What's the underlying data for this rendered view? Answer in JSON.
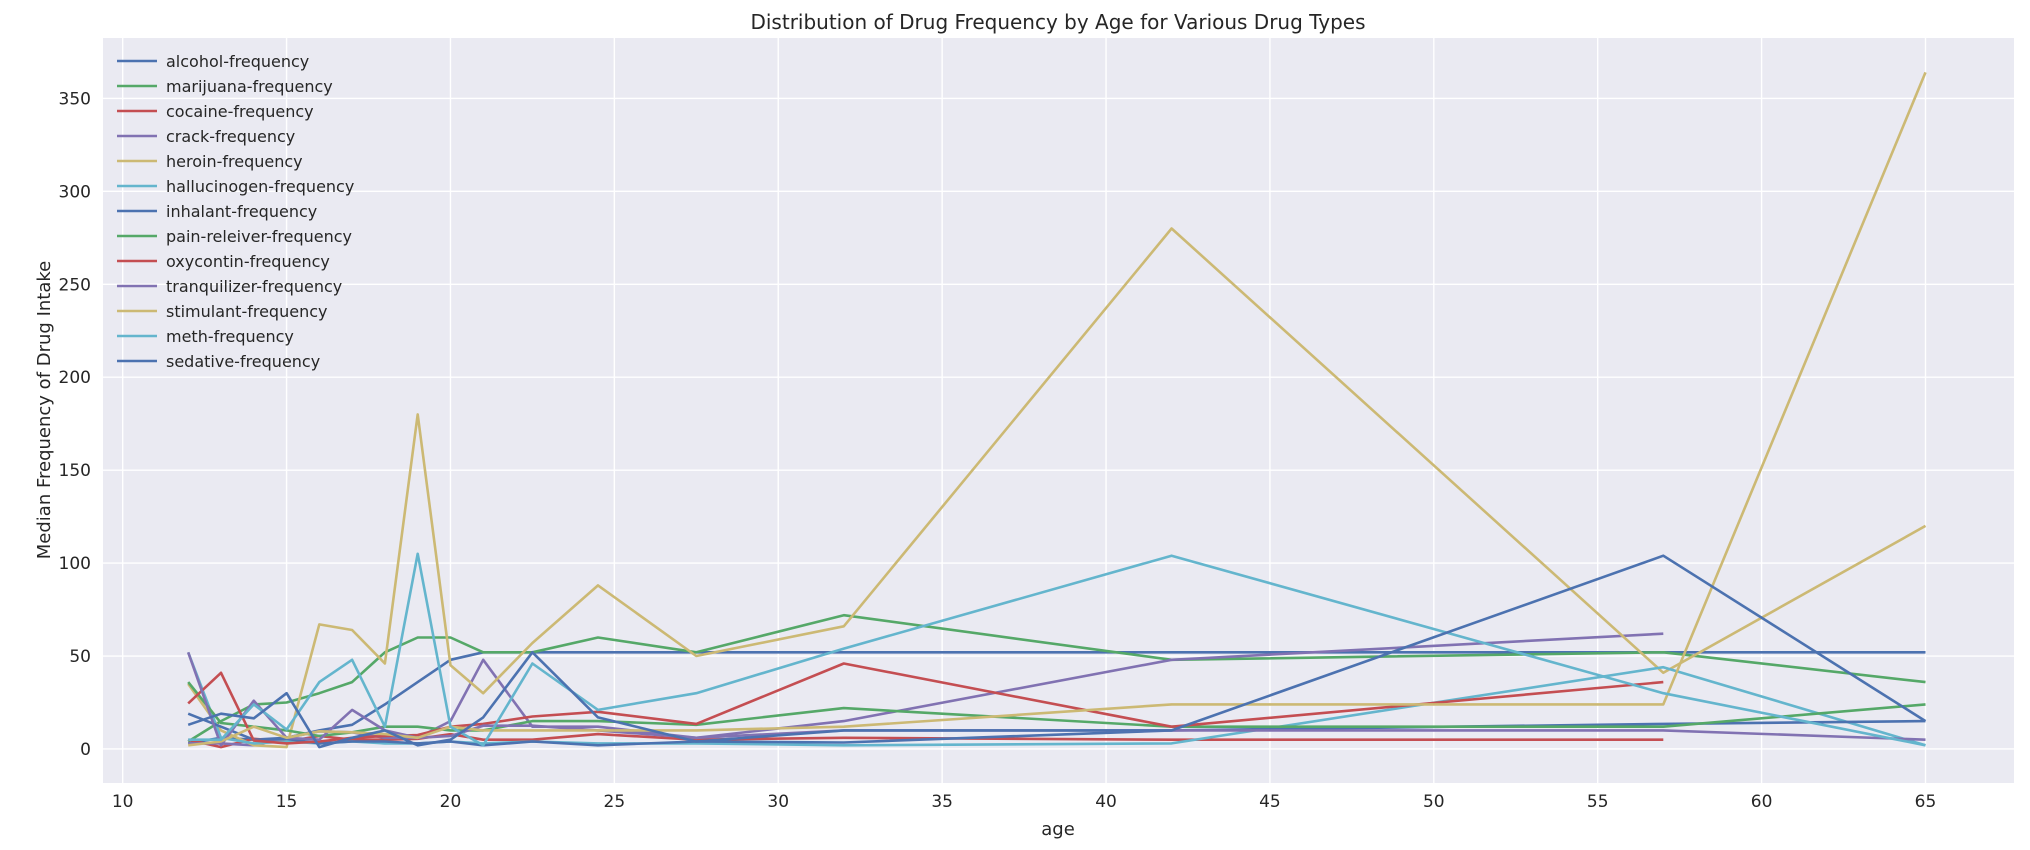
{
  "chart_data": {
    "type": "line",
    "title": "Distribution of Drug Frequency by Age for Various Drug Types",
    "xlabel": "age",
    "ylabel": "Median Frequency of Drug Intake",
    "xlim": [
      9.4,
      67.7
    ],
    "ylim": [
      -18.3,
      382.5
    ],
    "xticks": [
      10,
      15,
      20,
      25,
      30,
      35,
      40,
      45,
      50,
      55,
      60,
      65
    ],
    "yticks": [
      0,
      50,
      100,
      150,
      200,
      250,
      300,
      350
    ],
    "grid": true,
    "legend_position": "top-left",
    "series": [
      {
        "name": "alcohol-frequency",
        "color": "#4c72b0",
        "x": [
          12,
          13,
          14,
          15,
          16,
          17,
          18,
          19,
          20,
          21,
          22.5,
          24.5,
          27.5,
          32,
          42,
          57,
          65
        ],
        "y": [
          3,
          6,
          5,
          6,
          10,
          13,
          24,
          36,
          48,
          52,
          52,
          52,
          52,
          52,
          52,
          52,
          52
        ]
      },
      {
        "name": "marijuana-frequency",
        "color": "#55a868",
        "x": [
          12,
          13,
          14,
          15,
          16,
          17,
          18,
          19,
          20,
          21,
          22.5,
          24.5,
          27.5,
          32,
          42,
          57,
          65
        ],
        "y": [
          4,
          15,
          24,
          25,
          30,
          36,
          52,
          60,
          60,
          52,
          52,
          60,
          52,
          72,
          48,
          52,
          36
        ]
      },
      {
        "name": "cocaine-frequency",
        "color": "#c44e52",
        "x": [
          12,
          13,
          14,
          15,
          16,
          17,
          18,
          19,
          20,
          21,
          22.5,
          24.5,
          27.5,
          32,
          42,
          57
        ],
        "y": [
          5,
          1,
          5.5,
          4,
          7,
          5,
          5,
          5.5,
          8,
          5,
          5,
          8,
          5,
          6,
          5,
          5
        ]
      },
      {
        "name": "crack-frequency",
        "color": "#8172b2",
        "x": [
          12,
          13,
          14,
          15,
          16,
          17,
          18,
          19,
          20,
          21,
          22.5,
          24.5,
          27.5,
          32,
          42,
          57
        ],
        "y": [
          3,
          3,
          2,
          6,
          9.5,
          9,
          6,
          6,
          15,
          48,
          12,
          12,
          6,
          15,
          48,
          62
        ]
      },
      {
        "name": "heroin-frequency",
        "color": "#ccb974",
        "x": [
          12,
          13,
          14,
          15,
          16,
          17,
          18,
          19,
          20,
          21,
          22.5,
          24.5,
          27.5,
          32,
          42,
          57,
          65
        ],
        "y": [
          35,
          10,
          2,
          1,
          67,
          64,
          46,
          180,
          45,
          30,
          57,
          88,
          50,
          66,
          280,
          41,
          120
        ]
      },
      {
        "name": "hallucinogen-frequency",
        "color": "#64b5cd",
        "x": [
          12,
          13,
          14,
          15,
          16,
          17,
          18,
          19,
          20,
          21,
          22.5,
          24.5,
          27.5,
          32,
          42,
          57,
          65
        ],
        "y": [
          52,
          6,
          3,
          4,
          3,
          4,
          3,
          3,
          4,
          3,
          4,
          3,
          3,
          2,
          3,
          44,
          2
        ]
      },
      {
        "name": "inhalant-frequency",
        "color": "#4c72b0",
        "x": [
          12,
          13,
          14,
          15,
          16,
          17,
          18,
          19,
          20,
          21,
          22.5,
          24.5,
          27.5,
          32,
          42,
          57,
          65
        ],
        "y": [
          19,
          12,
          5,
          5.5,
          3,
          4,
          4,
          3,
          4,
          2,
          4,
          2,
          4,
          3.5,
          10,
          13.5,
          15
        ]
      },
      {
        "name": "pain-releiver-frequency",
        "color": "#55a868",
        "x": [
          12,
          13,
          14,
          15,
          16,
          17,
          18,
          19,
          20,
          21,
          22.5,
          24.5,
          27.5,
          32,
          42,
          57,
          65
        ],
        "y": [
          36,
          14,
          12,
          10,
          7,
          9,
          12,
          12,
          10,
          10,
          15,
          15,
          13,
          22,
          12,
          12,
          24
        ]
      },
      {
        "name": "oxycontin-frequency",
        "color": "#c44e52",
        "x": [
          12,
          13,
          14,
          15,
          16,
          17,
          18,
          19,
          20,
          21,
          22.5,
          24.5,
          27.5,
          32,
          42,
          57
        ],
        "y": [
          24.5,
          41,
          4.5,
          3,
          4,
          6,
          7,
          7.5,
          12,
          13.5,
          17.5,
          20,
          13.5,
          46,
          12,
          36
        ]
      },
      {
        "name": "tranquilizer-frequency",
        "color": "#8172b2",
        "x": [
          12,
          13,
          14,
          15,
          16,
          17,
          18,
          19,
          20,
          21,
          22.5,
          24.5,
          27.5,
          32,
          42,
          57,
          65
        ],
        "y": [
          52,
          2,
          26,
          6,
          5,
          21,
          10,
          6,
          7,
          12.5,
          12.5,
          10,
          6,
          10,
          10,
          10,
          5
        ]
      },
      {
        "name": "stimulant-frequency",
        "color": "#ccb974",
        "x": [
          12,
          13,
          14,
          15,
          16,
          17,
          18,
          19,
          20,
          21,
          22.5,
          24.5,
          27.5,
          32,
          42,
          57,
          65
        ],
        "y": [
          2,
          4,
          12,
          6,
          9.5,
          9,
          8,
          6,
          12,
          10,
          10,
          10,
          10,
          12,
          24,
          24,
          364
        ]
      },
      {
        "name": "meth-frequency",
        "color": "#64b5cd",
        "x": [
          12,
          13,
          14,
          15,
          16,
          17,
          18,
          19,
          20,
          21,
          22.5,
          24.5,
          27.5,
          32,
          42,
          57,
          65
        ],
        "y": [
          5,
          5,
          24,
          10.5,
          36,
          48,
          12,
          105,
          12,
          2,
          46,
          21,
          30,
          54,
          104,
          30,
          2
        ]
      },
      {
        "name": "sedative-frequency",
        "color": "#4c72b0",
        "x": [
          12,
          13,
          14,
          15,
          16,
          17,
          18,
          19,
          20,
          21,
          22.5,
          24.5,
          27.5,
          32,
          42,
          57,
          65
        ],
        "y": [
          13,
          19,
          16.5,
          30,
          1,
          6,
          10,
          2,
          5,
          17,
          52,
          17,
          4,
          10,
          10,
          104,
          15
        ]
      }
    ]
  }
}
